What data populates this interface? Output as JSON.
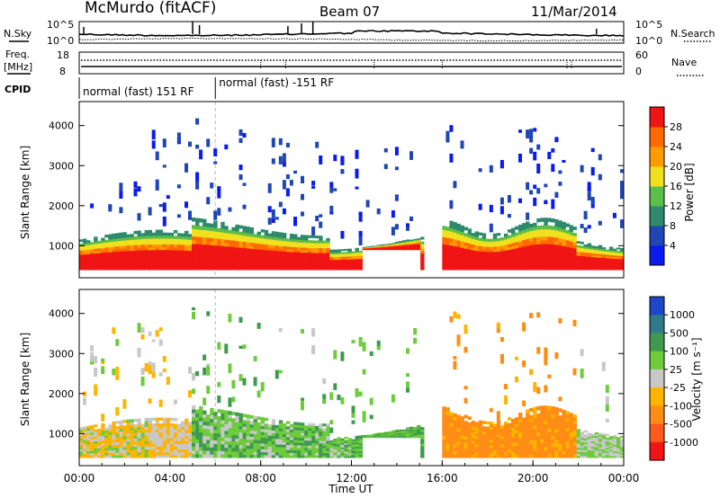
{
  "header": {
    "title": "McMurdo (fitACF)",
    "beam": "Beam 07",
    "date": "11/Mar/2014"
  },
  "chart_data": [
    {
      "type": "line",
      "name": "noise-panel",
      "left_label": "N.Sky",
      "right_label": "N.Search",
      "left_ticks": [
        "10^5",
        "10^0"
      ],
      "right_ticks": [
        "10^5",
        "10^0"
      ]
    },
    {
      "type": "line",
      "name": "freq-panel",
      "left_label_line1": "Freq.",
      "left_label_line2": "[MHz]",
      "right_label": "Nave",
      "left_ticks": [
        18,
        8
      ],
      "right_ticks": [
        60,
        0
      ]
    },
    {
      "type": "table",
      "name": "cpid-panel",
      "label": "CPID",
      "segments": [
        {
          "start_hour": 0,
          "end_hour": 6,
          "text": "normal (fast) 151 RF"
        },
        {
          "start_hour": 6,
          "end_hour": 24,
          "text": "normal (fast) -151 RF"
        }
      ]
    },
    {
      "type": "heatmap",
      "name": "power",
      "ylabel": "Slant Range [km]",
      "ylim": [
        200,
        4600
      ],
      "yticks": [
        1000,
        2000,
        3000,
        4000
      ],
      "xlim": [
        0,
        24
      ],
      "colorbar": {
        "label": "Power [dB]",
        "ticks": [
          4,
          8,
          12,
          16,
          20,
          24,
          28
        ],
        "range": [
          0,
          32
        ],
        "colors": [
          "#0a1bf0",
          "#1e46b4",
          "#2f8a6d",
          "#5bbf4a",
          "#f0e01e",
          "#ff9a00",
          "#ff6a00",
          "#f01414"
        ]
      }
    },
    {
      "type": "heatmap",
      "name": "velocity",
      "ylabel": "Slant Range [km]",
      "xlabel": "Time UT",
      "ylim": [
        200,
        4600
      ],
      "yticks": [
        1000,
        2000,
        3000,
        4000
      ],
      "xlim": [
        0,
        24
      ],
      "xticks": [
        "00:00",
        "04:00",
        "08:00",
        "12:00",
        "16:00",
        "20:00",
        "00:00"
      ],
      "colorbar": {
        "label": "Velocity [m s⁻¹]",
        "ticks": [
          "1000",
          "500",
          "100",
          "25",
          "-25",
          "-100",
          "-500",
          "-1000"
        ],
        "colors": [
          "#1e46c8",
          "#2f7a8a",
          "#3f9a50",
          "#6ecb3c",
          "#c8c8c8",
          "#ffb400",
          "#ff8c14",
          "#ff5a1e",
          "#f01414"
        ]
      }
    }
  ]
}
